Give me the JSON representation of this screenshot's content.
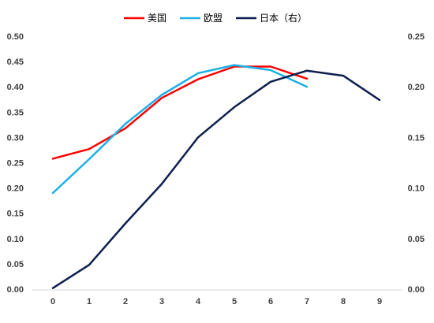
{
  "chart_data": {
    "type": "line",
    "x": [
      0,
      1,
      2,
      3,
      4,
      5,
      6,
      7,
      8,
      9
    ],
    "xticks": [
      "0",
      "1",
      "2",
      "3",
      "4",
      "5",
      "6",
      "7",
      "8",
      "9"
    ],
    "ylim_left": [
      0,
      0.5
    ],
    "ylim_right": [
      0,
      0.25
    ],
    "yticks_left": [
      "0.00",
      "0.05",
      "0.10",
      "0.15",
      "0.20",
      "0.25",
      "0.30",
      "0.35",
      "0.40",
      "0.45",
      "0.50"
    ],
    "yticks_right": [
      "0.00",
      "0.05",
      "0.10",
      "0.15",
      "0.20",
      "0.25"
    ],
    "legend_position": "top-center",
    "grid": false,
    "series": [
      {
        "name": "美国",
        "color": "#ff0000",
        "axis": "left",
        "x": [
          0,
          1,
          2,
          3,
          4,
          5,
          6,
          7
        ],
        "values": [
          0.258,
          0.277,
          0.318,
          0.378,
          0.415,
          0.44,
          0.44,
          0.416
        ]
      },
      {
        "name": "欧盟",
        "color": "#1ab0e8",
        "axis": "left",
        "x": [
          0,
          1,
          2,
          3,
          4,
          5,
          6,
          7
        ],
        "values": [
          0.19,
          0.257,
          0.327,
          0.384,
          0.427,
          0.443,
          0.433,
          0.4
        ]
      },
      {
        "name": "日本（右）",
        "color": "#0d1f4f",
        "axis": "right",
        "x": [
          0,
          1,
          2,
          3,
          4,
          5,
          6,
          7,
          8,
          9
        ],
        "values": [
          0.001,
          0.024,
          0.065,
          0.104,
          0.15,
          0.18,
          0.205,
          0.216,
          0.211,
          0.187
        ]
      }
    ]
  }
}
